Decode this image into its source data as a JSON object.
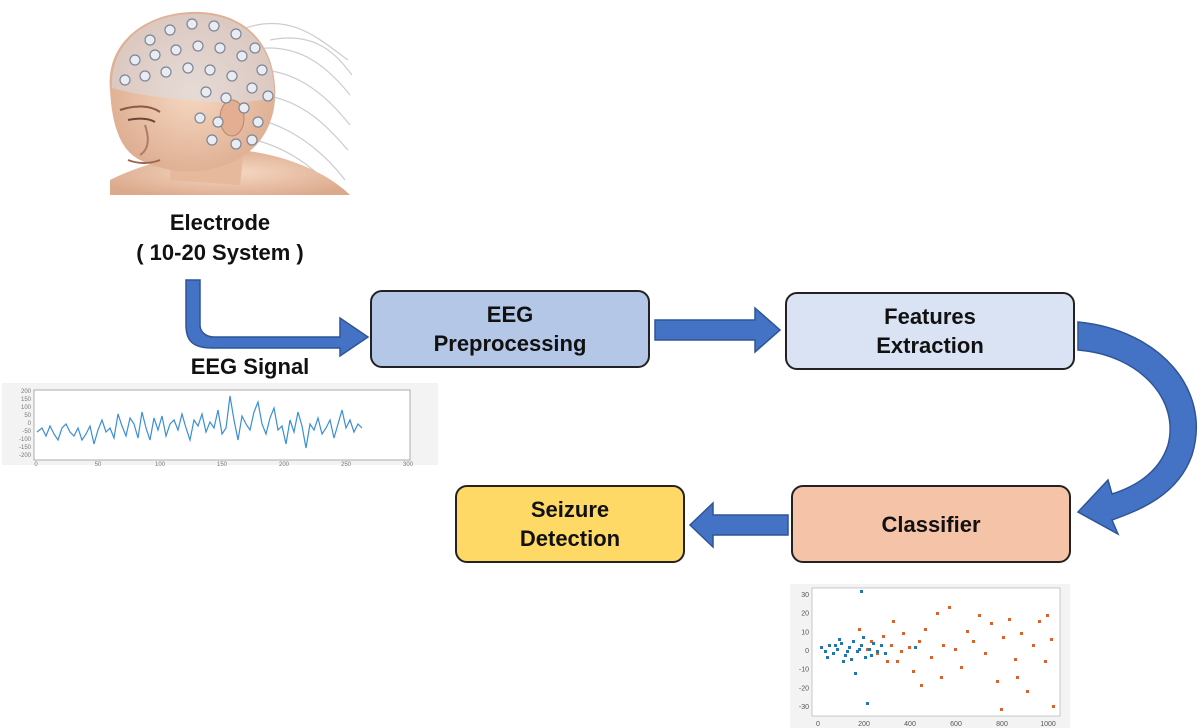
{
  "electrode": {
    "line1": "Electrode",
    "line2": "( 10-20 System )"
  },
  "eeg_signal_label": "EEG Signal",
  "boxes": {
    "preprocessing": {
      "line1": "EEG",
      "line2": "Preprocessing"
    },
    "features": {
      "line1": "Features",
      "line2": "Extraction"
    },
    "classifier": {
      "line1": "Classifier"
    },
    "seizure": {
      "line1": "Seizure",
      "line2": "Detection"
    }
  },
  "eeg_plot": {
    "y_ticks": [
      "200",
      "150",
      "100",
      "50",
      "0",
      "-50",
      "-100",
      "-150",
      "-200"
    ],
    "x_ticks": [
      "0",
      "50",
      "100",
      "150",
      "200",
      "250",
      "300"
    ]
  },
  "scatter_plot": {
    "y_ticks": [
      "30",
      "20",
      "10",
      "0",
      "-10",
      "-20",
      "-30"
    ],
    "x_ticks": [
      "0",
      "200",
      "400",
      "600",
      "800",
      "1000"
    ]
  },
  "colors": {
    "arrow": "#4472c4",
    "arrow_edge": "#2f5597",
    "signal": "#3a8fd6",
    "scatter_blue": "#1f77b4",
    "scatter_orange": "#e06020"
  },
  "icons": [
    "head-with-electrodes-illustration"
  ]
}
